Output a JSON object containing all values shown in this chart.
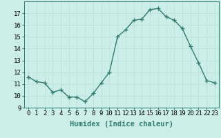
{
  "x": [
    0,
    1,
    2,
    3,
    4,
    5,
    6,
    7,
    8,
    9,
    10,
    11,
    12,
    13,
    14,
    15,
    16,
    17,
    18,
    19,
    20,
    21,
    22,
    23
  ],
  "y": [
    11.6,
    11.2,
    11.1,
    10.3,
    10.5,
    9.9,
    9.9,
    9.5,
    10.2,
    11.1,
    12.0,
    15.0,
    15.6,
    16.4,
    16.5,
    17.3,
    17.4,
    16.7,
    16.4,
    15.7,
    14.2,
    12.8,
    11.3,
    11.1
  ],
  "line_color": "#2e7d6e",
  "marker": "+",
  "marker_size": 4,
  "linewidth": 1.0,
  "xlabel": "Humidex (Indice chaleur)",
  "ylim": [
    9,
    18
  ],
  "xlim": [
    -0.5,
    23.5
  ],
  "yticks": [
    9,
    10,
    11,
    12,
    13,
    14,
    15,
    16,
    17
  ],
  "xticks": [
    0,
    1,
    2,
    3,
    4,
    5,
    6,
    7,
    8,
    9,
    10,
    11,
    12,
    13,
    14,
    15,
    16,
    17,
    18,
    19,
    20,
    21,
    22,
    23
  ],
  "background_color": "#cceee8",
  "grid_color": "#b8ddd8",
  "tick_label_fontsize": 6.5,
  "xlabel_fontsize": 7.5
}
